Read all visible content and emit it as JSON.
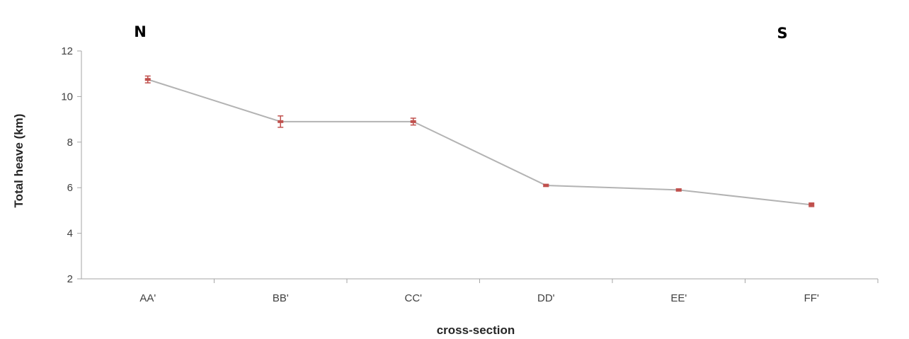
{
  "chart_data": {
    "type": "line",
    "title": "",
    "xlabel": "cross-section",
    "ylabel": "Total heave (km)",
    "categories": [
      "AA'",
      "BB'",
      "CC'",
      "DD'",
      "EE'",
      "FF'"
    ],
    "series": [
      {
        "values": [
          10.75,
          8.9,
          8.9,
          6.1,
          5.9,
          5.25
        ],
        "error": [
          0.15,
          0.25,
          0.15,
          0.05,
          0.05,
          0.08
        ]
      }
    ],
    "ylim": [
      2,
      12
    ],
    "yticks": [
      2,
      4,
      6,
      8,
      10,
      12
    ],
    "grid": false,
    "legend": "none",
    "annotations": {
      "left": "N",
      "right": "S"
    },
    "colors": {
      "line": "#b3b3b3",
      "marker": "#c0504d",
      "axis": "#a6a6a6",
      "text": "#404040"
    }
  }
}
